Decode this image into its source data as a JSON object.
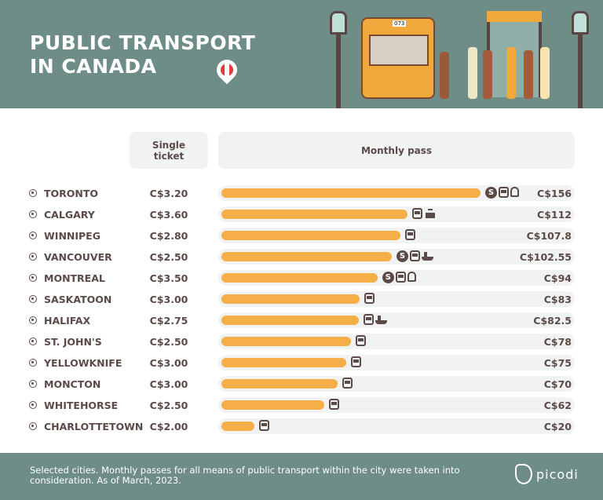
{
  "header": {
    "title_line1": "PUBLIC TRANSPORT",
    "title_line2": "IN CANADA",
    "bus_number": "073"
  },
  "columns": {
    "single": "Single ticket",
    "monthly": "Monthly pass"
  },
  "colors": {
    "header_bg": "#6e8d87",
    "bar": "#f5ae48",
    "text": "#5b4a48",
    "row_bg": "#f1f3f2"
  },
  "chart_data": {
    "type": "bar",
    "orientation": "horizontal",
    "categories": [
      "TORONTO",
      "CALGARY",
      "WINNIPEG",
      "VANCOUVER",
      "MONTREAL",
      "SASKATOON",
      "HALIFAX",
      "ST. JOHN'S",
      "YELLOWKNIFE",
      "MONCTON",
      "WHITEHORSE",
      "CHARLOTTETOWN"
    ],
    "values": [
      156,
      112,
      107.8,
      102.55,
      94,
      83,
      82.5,
      78,
      75,
      70,
      62,
      20
    ],
    "value_labels": [
      "C$156",
      "C$112",
      "C$107.8",
      "C$102.55",
      "C$94",
      "C$83",
      "C$82.5",
      "C$78",
      "C$75",
      "C$70",
      "C$62",
      "C$20"
    ],
    "single_ticket": [
      "C$3.20",
      "C$3.60",
      "C$2.80",
      "C$2.50",
      "C$3.50",
      "C$3.00",
      "C$2.75",
      "C$2.50",
      "C$3.00",
      "C$3.00",
      "C$2.50",
      "C$2.00"
    ],
    "modes": [
      [
        "subway",
        "bus",
        "train"
      ],
      [
        "bus",
        "tram"
      ],
      [
        "bus"
      ],
      [
        "subway",
        "bus",
        "ferry"
      ],
      [
        "subway",
        "bus",
        "train"
      ],
      [
        "bus"
      ],
      [
        "bus",
        "ferry"
      ],
      [
        "bus"
      ],
      [
        "bus"
      ],
      [
        "bus"
      ],
      [
        "bus"
      ],
      [
        "bus"
      ]
    ],
    "xlim": [
      0,
      156
    ]
  },
  "footer": {
    "note": "Selected cities. Monthly passes for all means of public transport within the city were taken into consideration. As of March, 2023.",
    "logo": "picodi"
  }
}
